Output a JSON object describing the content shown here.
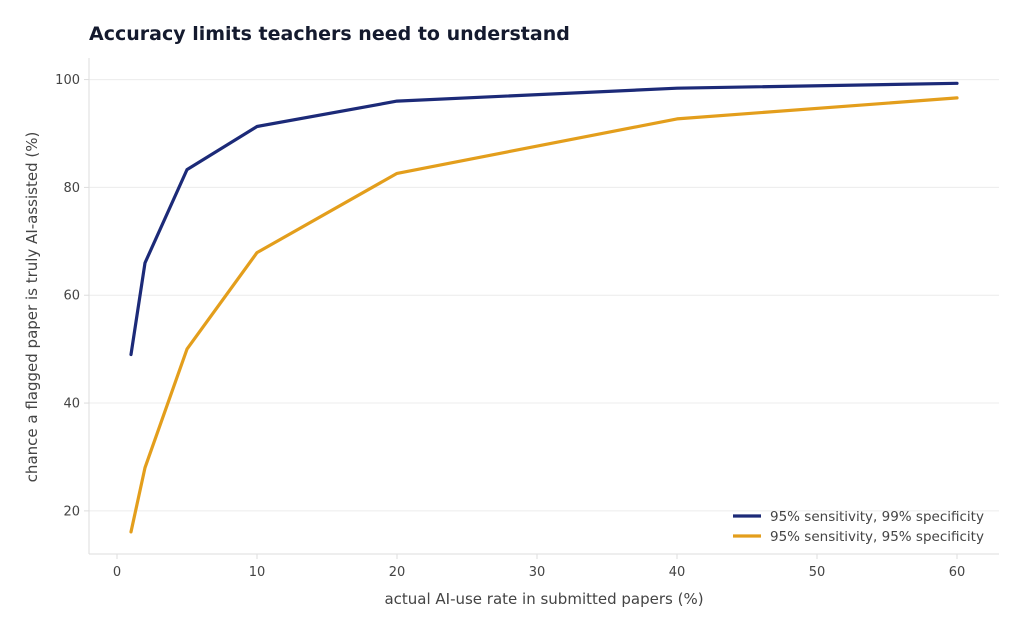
{
  "chart_data": {
    "type": "line",
    "title": "Accuracy limits teachers need to understand",
    "xlabel": "actual AI-use rate in submitted papers (%)",
    "ylabel": "chance a flagged paper is truly AI-assisted (%)",
    "xlim": [
      -2,
      63
    ],
    "ylim": [
      12,
      104
    ],
    "xticks": [
      0,
      10,
      20,
      30,
      40,
      50,
      60
    ],
    "yticks": [
      20,
      40,
      60,
      80,
      100
    ],
    "x": [
      1,
      2,
      5,
      10,
      20,
      40,
      60
    ],
    "grid": "horizontal",
    "legend_position": "bottom-right",
    "series": [
      {
        "name": "95% sensitivity, 99% specificity",
        "color": "#1c2a78",
        "values": [
          49.0,
          66.0,
          83.3,
          91.3,
          96.0,
          98.4,
          99.3
        ]
      },
      {
        "name": "95% sensitivity, 95% specificity",
        "color": "#e39e1c",
        "values": [
          16.1,
          28.0,
          50.0,
          67.9,
          82.6,
          92.7,
          96.6
        ]
      }
    ]
  }
}
